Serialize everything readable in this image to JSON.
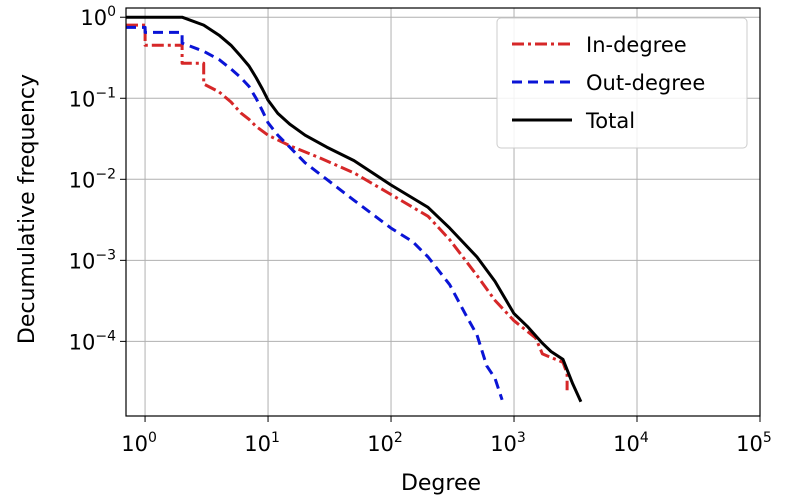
{
  "chart_data": {
    "type": "line",
    "title": "",
    "xlabel": "Degree",
    "ylabel": "Decumulative frequency",
    "xscale": "log",
    "yscale": "log",
    "xlim": [
      0.7,
      100000
    ],
    "ylim": [
      1.2e-05,
      1.3
    ],
    "grid": true,
    "legend_position": "top-right",
    "x_ticks": [
      {
        "value": 1,
        "base": "10",
        "exp": "0"
      },
      {
        "value": 10,
        "base": "10",
        "exp": "1"
      },
      {
        "value": 100,
        "base": "10",
        "exp": "2"
      },
      {
        "value": 1000,
        "base": "10",
        "exp": "3"
      },
      {
        "value": 10000,
        "base": "10",
        "exp": "4"
      },
      {
        "value": 100000,
        "base": "10",
        "exp": "5"
      }
    ],
    "y_ticks": [
      {
        "value": 1,
        "base": "10",
        "exp": "0"
      },
      {
        "value": 0.1,
        "base": "10",
        "exp": "−1"
      },
      {
        "value": 0.01,
        "base": "10",
        "exp": "−2"
      },
      {
        "value": 0.001,
        "base": "10",
        "exp": "−3"
      },
      {
        "value": 0.0001,
        "base": "10",
        "exp": "−4"
      }
    ],
    "series": [
      {
        "name": "In-degree",
        "color": "#d62728",
        "style": "dash-dot",
        "x": [
          0.7,
          1,
          1,
          2,
          2,
          3,
          3,
          4,
          5,
          6,
          7,
          8,
          10,
          15,
          25,
          50,
          100,
          200,
          300,
          500,
          700,
          1000,
          1500,
          1700,
          2500,
          2700,
          2700
        ],
        "y": [
          0.8,
          0.8,
          0.45,
          0.45,
          0.27,
          0.27,
          0.15,
          0.12,
          0.09,
          0.066,
          0.055,
          0.045,
          0.035,
          0.026,
          0.019,
          0.012,
          0.0065,
          0.0035,
          0.0018,
          0.00065,
          0.00032,
          0.00018,
          0.00011,
          7e-05,
          5.5e-05,
          4e-05,
          2.5e-05
        ]
      },
      {
        "name": "Out-degree",
        "color": "#0a14d6",
        "style": "dashed",
        "x": [
          0.7,
          1,
          1,
          2,
          2,
          3,
          4,
          5,
          6,
          7,
          8,
          9,
          10,
          12,
          15,
          20,
          30,
          50,
          100,
          150,
          200,
          300,
          400,
          500,
          600,
          700,
          800
        ],
        "y": [
          0.75,
          0.75,
          0.65,
          0.65,
          0.48,
          0.38,
          0.3,
          0.23,
          0.18,
          0.14,
          0.1,
          0.07,
          0.05,
          0.035,
          0.025,
          0.016,
          0.01,
          0.0055,
          0.0025,
          0.0017,
          0.0011,
          0.0005,
          0.00022,
          0.00012,
          5e-05,
          3.5e-05,
          1.9e-05
        ]
      },
      {
        "name": "Total",
        "color": "#000000",
        "style": "solid",
        "x": [
          0.7,
          2,
          3,
          4,
          5,
          6,
          7,
          8,
          9,
          10,
          12,
          15,
          20,
          30,
          50,
          100,
          200,
          300,
          500,
          700,
          1000,
          1300,
          1700,
          2000,
          2500,
          3000,
          3500
        ],
        "y": [
          1,
          1,
          0.8,
          0.6,
          0.45,
          0.33,
          0.25,
          0.18,
          0.13,
          0.095,
          0.065,
          0.048,
          0.035,
          0.025,
          0.017,
          0.0085,
          0.0045,
          0.0025,
          0.0011,
          0.00055,
          0.00022,
          0.00015,
          9.5e-05,
          7.5e-05,
          6e-05,
          3e-05,
          1.8e-05
        ]
      }
    ]
  }
}
